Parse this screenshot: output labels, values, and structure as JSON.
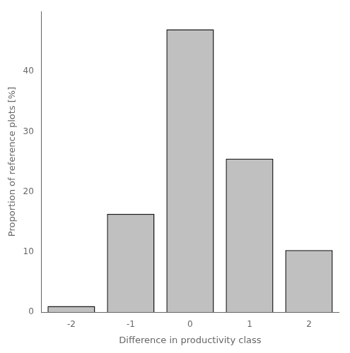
{
  "chart_data": {
    "type": "bar",
    "xlabel": "Difference in productivity class",
    "ylabel": "Proportion of reference plots [%]",
    "categories": [
      -2,
      -1,
      0,
      1,
      2
    ],
    "values": [
      1.0,
      16.3,
      47.0,
      25.5,
      10.3
    ],
    "color": "#C0C0C0",
    "ylim": [
      0,
      50
    ],
    "yticks": [
      0,
      10,
      20,
      30,
      40
    ],
    "grid": false
  }
}
